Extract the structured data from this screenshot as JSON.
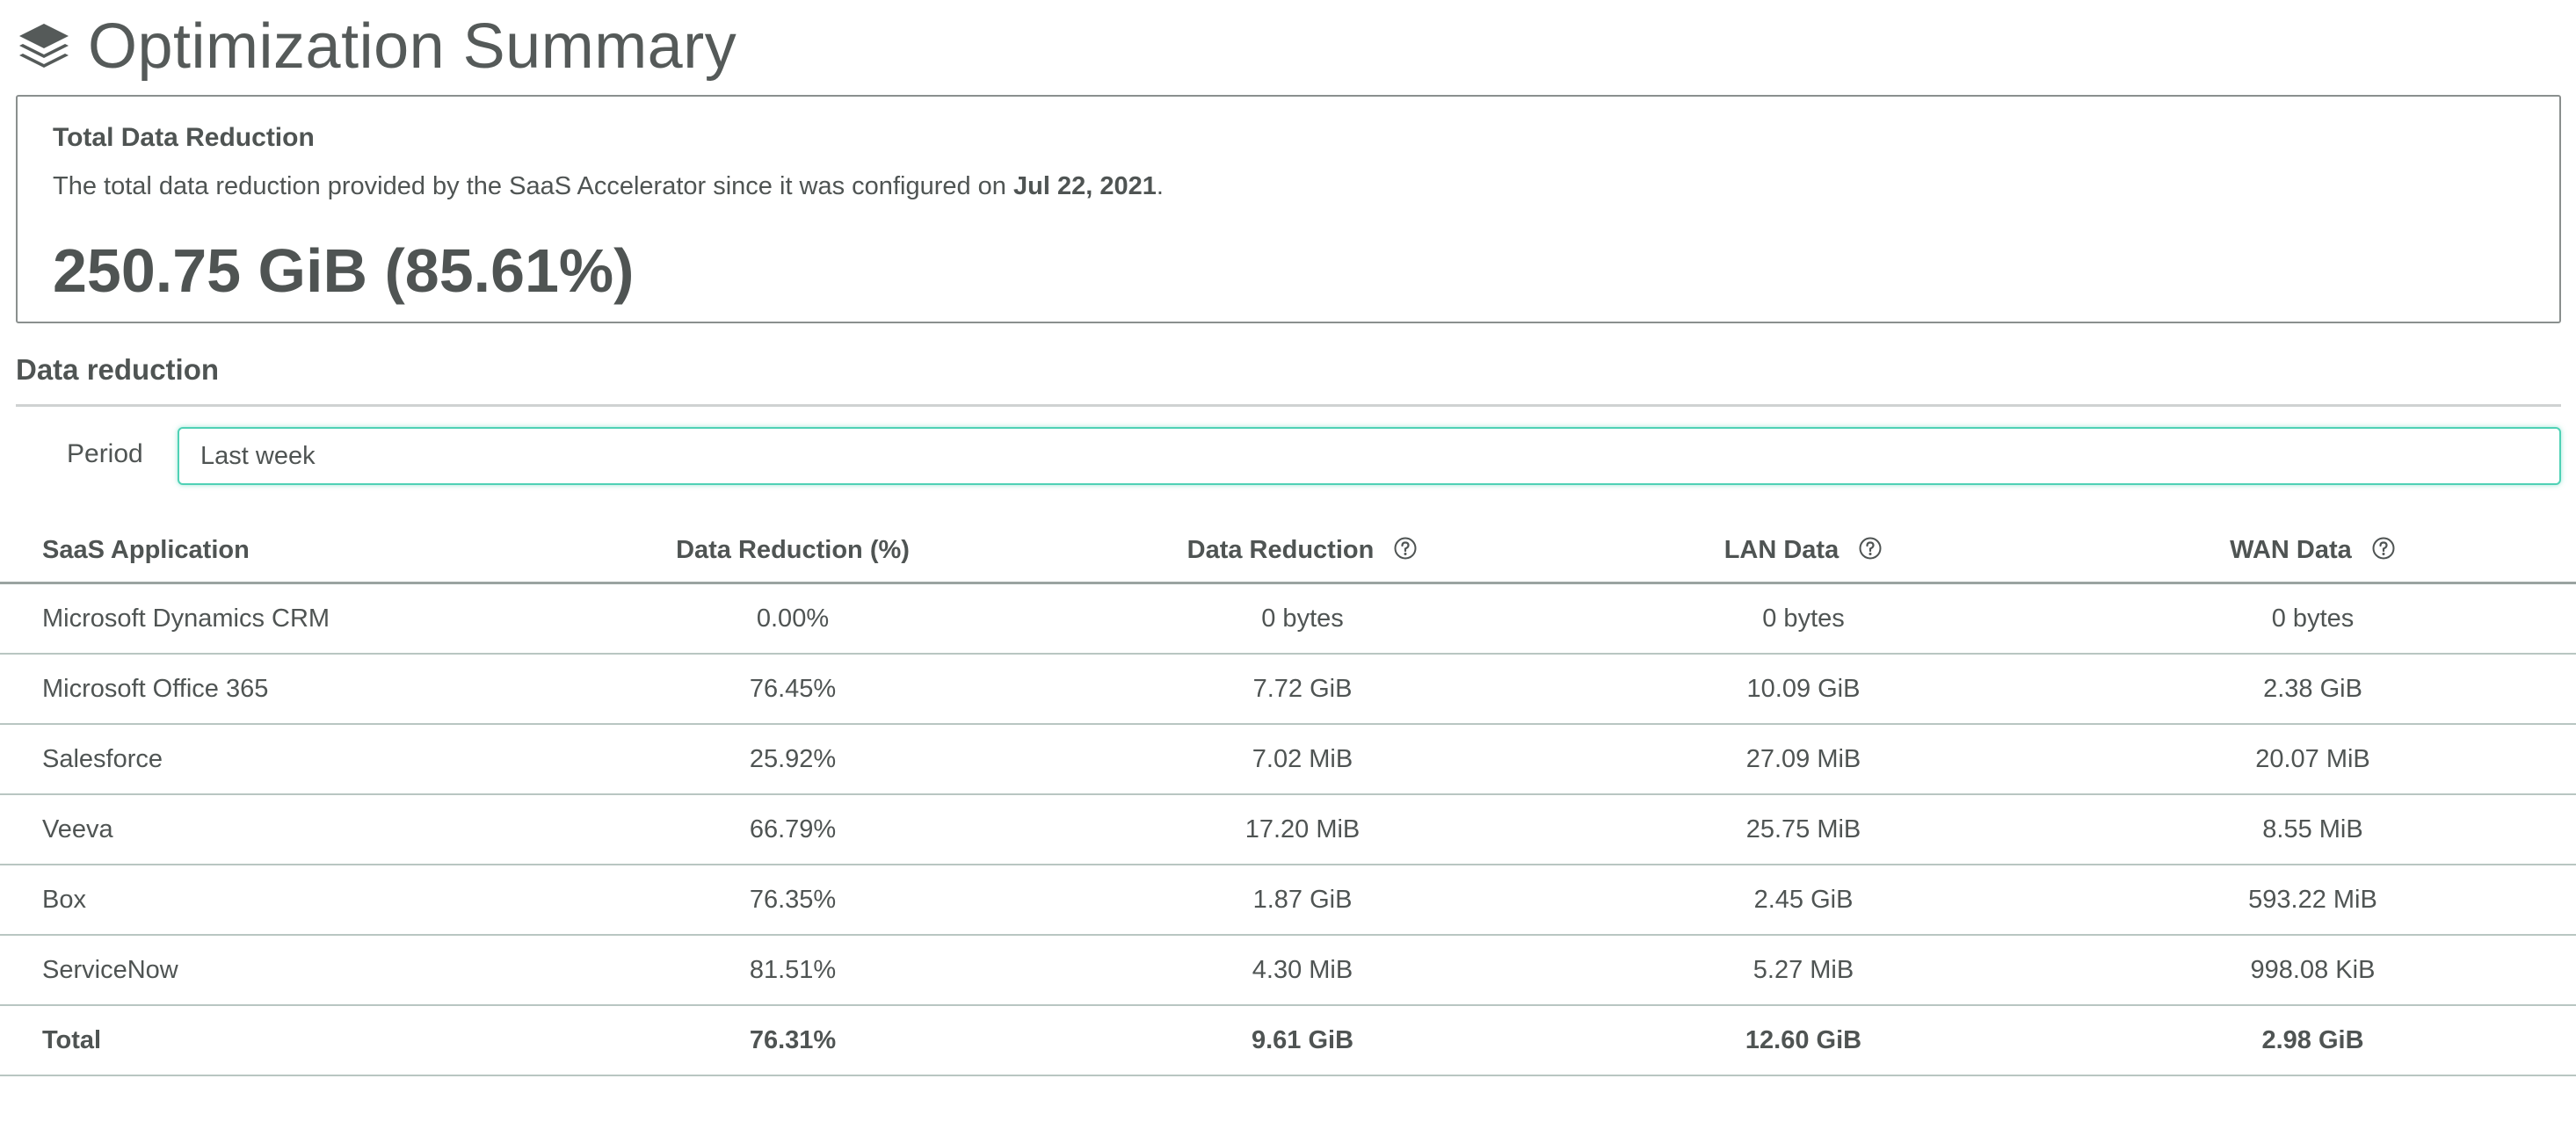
{
  "header": {
    "title": "Optimization Summary",
    "icon": "layers-icon"
  },
  "summary": {
    "title": "Total Data Reduction",
    "description_prefix": "The total data reduction provided by the SaaS Accelerator since it was configured on ",
    "configured_date": "Jul 22, 2021",
    "description_suffix": ".",
    "value": "250.75 GiB (85.61%)"
  },
  "section": {
    "title": "Data reduction"
  },
  "period": {
    "label": "Period",
    "value": "Last week"
  },
  "table": {
    "headers": [
      "SaaS Application",
      "Data Reduction (%)",
      "Data Reduction",
      "LAN Data",
      "WAN Data"
    ],
    "rows": [
      [
        "Microsoft Dynamics CRM",
        "0.00%",
        "0 bytes",
        "0 bytes",
        "0 bytes"
      ],
      [
        "Microsoft Office 365",
        "76.45%",
        "7.72 GiB",
        "10.09 GiB",
        "2.38 GiB"
      ],
      [
        "Salesforce",
        "25.92%",
        "7.02 MiB",
        "27.09 MiB",
        "20.07 MiB"
      ],
      [
        "Veeva",
        "66.79%",
        "17.20 MiB",
        "25.75 MiB",
        "8.55 MiB"
      ],
      [
        "Box",
        "76.35%",
        "1.87 GiB",
        "2.45 GiB",
        "593.22 MiB"
      ],
      [
        "ServiceNow",
        "81.51%",
        "4.30 MiB",
        "5.27 MiB",
        "998.08 KiB"
      ]
    ],
    "total": [
      "Total",
      "76.31%",
      "9.61 GiB",
      "12.60 GiB",
      "2.98 GiB"
    ]
  },
  "colors": {
    "text": "#4f5453",
    "accent": "#4fd1b5",
    "border": "#8a8f8e"
  }
}
